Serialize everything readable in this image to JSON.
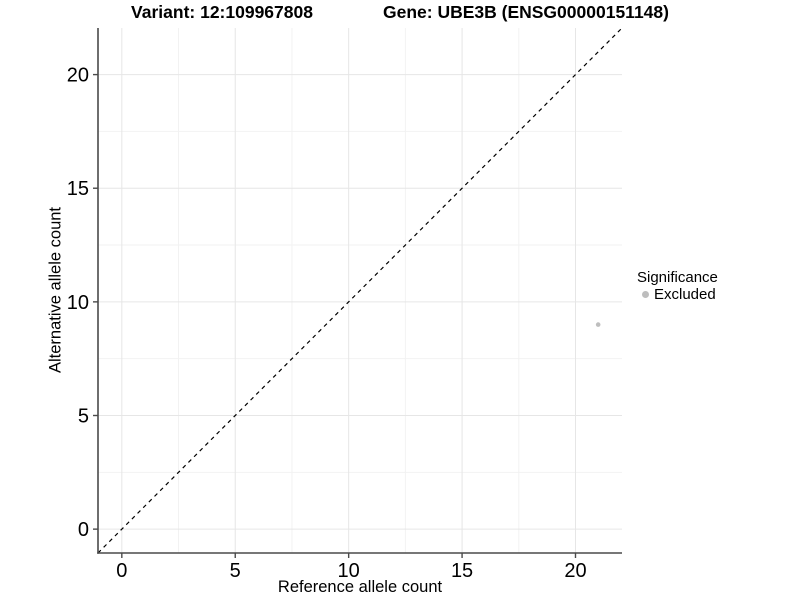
{
  "chart_data": {
    "type": "scatter",
    "title_left": "Variant: 12:109967808",
    "title_right": "Gene: UBE3B (ENSG00000151148)",
    "xlabel": "Reference allele count",
    "ylabel": "Alternative allele count",
    "xlim": [
      -1.05,
      22.05
    ],
    "ylim": [
      -1.05,
      22.05
    ],
    "x_ticks": [
      0,
      5,
      10,
      15,
      20
    ],
    "y_ticks": [
      0,
      5,
      10,
      15,
      20
    ],
    "x_minor_ticks": [
      2.5,
      7.5,
      12.5,
      17.5
    ],
    "y_minor_ticks": [
      2.5,
      7.5,
      12.5,
      17.5
    ],
    "grid": true,
    "identity_line": {
      "style": "dashed",
      "slope": 1,
      "intercept": 0,
      "color": "#000000"
    },
    "points": [
      {
        "x": 21,
        "y": 9,
        "series": "Excluded"
      }
    ],
    "series": [
      {
        "name": "Excluded",
        "color": "#bebebe"
      }
    ],
    "legend": {
      "title": "Significance",
      "position": "right",
      "items": [
        {
          "label": "Excluded",
          "color": "#bebebe"
        }
      ]
    },
    "colors": {
      "background": "#ffffff",
      "grid_major": "#e6e6e6",
      "grid_minor": "#f2f2f2",
      "axis": "#4a4a4a",
      "text": "#000000"
    }
  }
}
